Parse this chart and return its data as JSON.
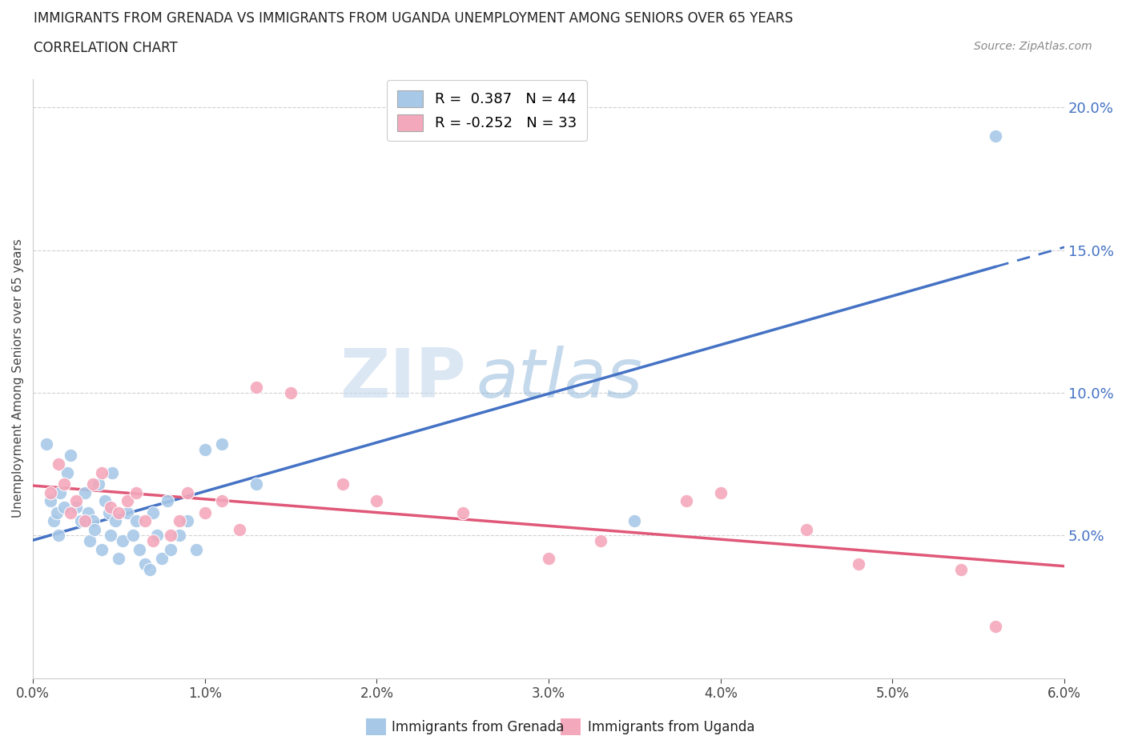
{
  "title_line1": "IMMIGRANTS FROM GRENADA VS IMMIGRANTS FROM UGANDA UNEMPLOYMENT AMONG SENIORS OVER 65 YEARS",
  "title_line2": "CORRELATION CHART",
  "source": "Source: ZipAtlas.com",
  "ylabel": "Unemployment Among Seniors over 65 years",
  "legend_grenada": "Immigrants from Grenada",
  "legend_uganda": "Immigrants from Uganda",
  "r_grenada": 0.387,
  "n_grenada": 44,
  "r_uganda": -0.252,
  "n_uganda": 33,
  "color_grenada": "#a8c8e8",
  "color_uganda": "#f4a8bc",
  "trend_grenada": "#4472c4",
  "trend_uganda": "#e05878",
  "xmin": 0.0,
  "xmax": 0.06,
  "ymin": 0.0,
  "ymax": 0.21,
  "yticks": [
    0.0,
    0.05,
    0.1,
    0.15,
    0.2
  ],
  "xticks": [
    0.0,
    0.01,
    0.02,
    0.03,
    0.04,
    0.05,
    0.06
  ],
  "grenada_x": [
    0.0008,
    0.001,
    0.0012,
    0.0014,
    0.0015,
    0.0016,
    0.0018,
    0.002,
    0.0022,
    0.0025,
    0.0028,
    0.003,
    0.0032,
    0.0033,
    0.0035,
    0.0036,
    0.0038,
    0.004,
    0.0042,
    0.0044,
    0.0045,
    0.0046,
    0.0048,
    0.005,
    0.0052,
    0.0055,
    0.0058,
    0.006,
    0.0062,
    0.0065,
    0.0068,
    0.007,
    0.0072,
    0.0075,
    0.0078,
    0.008,
    0.0085,
    0.009,
    0.0095,
    0.01,
    0.011,
    0.013,
    0.035,
    0.056
  ],
  "grenada_y": [
    0.082,
    0.062,
    0.055,
    0.058,
    0.05,
    0.065,
    0.06,
    0.072,
    0.078,
    0.06,
    0.055,
    0.065,
    0.058,
    0.048,
    0.055,
    0.052,
    0.068,
    0.045,
    0.062,
    0.058,
    0.05,
    0.072,
    0.055,
    0.042,
    0.048,
    0.058,
    0.05,
    0.055,
    0.045,
    0.04,
    0.038,
    0.058,
    0.05,
    0.042,
    0.062,
    0.045,
    0.05,
    0.055,
    0.045,
    0.08,
    0.082,
    0.068,
    0.055,
    0.19
  ],
  "uganda_x": [
    0.001,
    0.0015,
    0.0018,
    0.0022,
    0.0025,
    0.003,
    0.0035,
    0.004,
    0.0045,
    0.005,
    0.0055,
    0.006,
    0.0065,
    0.007,
    0.008,
    0.0085,
    0.009,
    0.01,
    0.011,
    0.012,
    0.013,
    0.015,
    0.018,
    0.02,
    0.025,
    0.03,
    0.033,
    0.038,
    0.04,
    0.045,
    0.048,
    0.054,
    0.056
  ],
  "uganda_y": [
    0.065,
    0.075,
    0.068,
    0.058,
    0.062,
    0.055,
    0.068,
    0.072,
    0.06,
    0.058,
    0.062,
    0.065,
    0.055,
    0.048,
    0.05,
    0.055,
    0.065,
    0.058,
    0.062,
    0.052,
    0.102,
    0.1,
    0.068,
    0.062,
    0.058,
    0.042,
    0.048,
    0.062,
    0.065,
    0.052,
    0.04,
    0.038,
    0.018
  ],
  "watermark_zip": "ZIP",
  "watermark_atlas": "atlas",
  "background_color": "#ffffff",
  "grid_color": "#d0d0d0"
}
